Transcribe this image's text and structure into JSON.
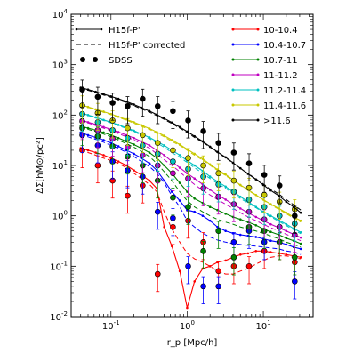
{
  "chart_data": {
    "type": "line",
    "title": "",
    "xlabel": "r_p [Mpc/h]",
    "ylabel": "ΔΣ[hM⊙/pc²]",
    "xscale": "log",
    "yscale": "log",
    "xlim": [
      0.03,
      45
    ],
    "ylim": [
      0.01,
      10000
    ],
    "x_ticks": [
      "10^-1",
      "10^0",
      "10^1"
    ],
    "y_ticks": [
      "10^-2",
      "10^-1",
      "10^0",
      "10^1",
      "10^2",
      "10^3",
      "10^4"
    ],
    "legend_left": {
      "position": "top-left",
      "entries": [
        {
          "label": "H15f-P'",
          "style": "solid-with-points"
        },
        {
          "label": "H15f-P' corrected",
          "style": "dashed"
        },
        {
          "label": "SDSS",
          "style": "markers"
        }
      ]
    },
    "legend_right": {
      "position": "top-right",
      "entries": [
        "10-10.4",
        "10.4-10.7",
        "10.7-11",
        "11-11.2",
        "11.2-11.4",
        "11.4-11.6",
        ">11.6"
      ]
    },
    "x": [
      0.04,
      0.05,
      0.063,
      0.08,
      0.1,
      0.125,
      0.16,
      0.2,
      0.25,
      0.32,
      0.4,
      0.5,
      0.63,
      0.8,
      1.0,
      1.25,
      1.6,
      2.0,
      2.5,
      3.2,
      4.0,
      5.0,
      6.3,
      8.0,
      10.0,
      12.5,
      16.0,
      20.0,
      25.0,
      31.0
    ],
    "sdss_x": [
      0.042,
      0.067,
      0.105,
      0.165,
      0.26,
      0.41,
      0.65,
      1.03,
      1.63,
      2.58,
      4.1,
      6.5,
      10.3,
      16.3,
      25.8
    ],
    "series": [
      {
        "name": "10-10.4",
        "color": "#ff0000",
        "model": [
          22,
          20,
          18,
          16,
          14,
          12,
          10,
          8,
          6.5,
          5,
          3.5,
          0.6,
          0.25,
          0.08,
          0.015,
          0.05,
          0.09,
          0.1,
          0.12,
          0.13,
          0.15,
          0.17,
          0.18,
          0.2,
          0.2,
          0.19,
          0.18,
          0.17,
          0.16,
          0.15
        ],
        "corrected": [
          20,
          18,
          16,
          14,
          12.5,
          11,
          9,
          7,
          5.5,
          4.2,
          3,
          1.2,
          0.55,
          0.3,
          0.18,
          0.14,
          0.12,
          0.1,
          0.08,
          0.07,
          0.07,
          0.08,
          0.09,
          0.11,
          0.13,
          0.15,
          0.16,
          0.16,
          0.15,
          0.14
        ],
        "sdss": [
          20,
          10,
          5,
          2.5,
          4,
          0.07,
          0.6,
          0.8,
          0.3,
          0.08,
          0.1,
          0.1,
          0.2,
          0.3,
          0.12
        ]
      },
      {
        "name": "10.4-10.7",
        "color": "#0000ff",
        "model": [
          45,
          40,
          36,
          32,
          28,
          24,
          20,
          17,
          14,
          11,
          8,
          5,
          3,
          2,
          1.3,
          1.2,
          1.0,
          0.8,
          0.6,
          0.5,
          0.45,
          0.42,
          0.4,
          0.38,
          0.35,
          0.32,
          0.3,
          0.27,
          0.24,
          0.22
        ],
        "corrected": [
          42,
          37,
          33,
          29,
          25,
          22,
          18,
          15,
          12,
          9.5,
          7,
          4.5,
          2.5,
          1.5,
          0.8,
          0.6,
          0.45,
          0.38,
          0.33,
          0.3,
          0.28,
          0.27,
          0.26,
          0.25,
          0.24,
          0.23,
          0.22,
          0.2,
          0.19,
          0.17
        ],
        "sdss": [
          40,
          25,
          12,
          8,
          6,
          1.2,
          0.9,
          0.1,
          0.04,
          0.04,
          0.3,
          0.5,
          0.3,
          0.6,
          0.05
        ]
      },
      {
        "name": "10.7-11",
        "color": "#008000",
        "model": [
          60,
          55,
          50,
          45,
          40,
          35,
          30,
          26,
          22,
          18,
          14,
          10,
          7,
          4.5,
          3,
          2.2,
          1.8,
          1.5,
          1.3,
          1.1,
          0.95,
          0.85,
          0.75,
          0.65,
          0.55,
          0.48,
          0.42,
          0.36,
          0.32,
          0.28
        ],
        "corrected": [
          58,
          52,
          47,
          42,
          37,
          32,
          27,
          23,
          19,
          15,
          11,
          7.5,
          5,
          3,
          2,
          1.5,
          1.2,
          1,
          0.85,
          0.75,
          0.68,
          0.6,
          0.55,
          0.5,
          0.45,
          0.4,
          0.35,
          0.3,
          0.27,
          0.24
        ],
        "sdss": [
          55,
          38,
          24,
          15,
          10,
          5,
          2.3,
          1.5,
          0.2,
          0.5,
          0.15,
          0.6,
          0.5,
          0.3,
          0.15
        ]
      },
      {
        "name": "11-11.2",
        "color": "#c000c0",
        "model": [
          80,
          72,
          65,
          58,
          52,
          46,
          40,
          35,
          30,
          25,
          20,
          16,
          12,
          9,
          7,
          5.5,
          4.2,
          3.3,
          2.6,
          2.1,
          1.7,
          1.4,
          1.15,
          0.95,
          0.8,
          0.68,
          0.58,
          0.5,
          0.43,
          0.37
        ],
        "corrected": [
          78,
          70,
          62,
          55,
          49,
          43,
          37,
          32,
          27,
          22,
          17,
          13,
          10,
          7.5,
          5.5,
          4.2,
          3.2,
          2.6,
          2.1,
          1.7,
          1.4,
          1.15,
          0.95,
          0.8,
          0.68,
          0.58,
          0.5,
          0.43,
          0.37,
          0.32
        ],
        "sdss": [
          75,
          50,
          34,
          23,
          16,
          10,
          7,
          5.5,
          3.5,
          2.4,
          1.7,
          1.2,
          0.85,
          0.6,
          0.42
        ]
      },
      {
        "name": "11.2-11.4",
        "color": "#00c0c0",
        "model": [
          110,
          100,
          90,
          80,
          72,
          64,
          56,
          49,
          42,
          36,
          30,
          25,
          20,
          16,
          12.5,
          10,
          7.8,
          6,
          4.8,
          3.8,
          3,
          2.4,
          1.9,
          1.5,
          1.2,
          1,
          0.82,
          0.68,
          0.56,
          0.47
        ],
        "corrected": [
          108,
          98,
          88,
          78,
          70,
          62,
          54,
          47,
          40,
          34,
          28,
          23,
          18,
          14.5,
          11.5,
          9,
          7,
          5.5,
          4.4,
          3.5,
          2.8,
          2.2,
          1.8,
          1.45,
          1.15,
          0.95,
          0.78,
          0.64,
          0.53,
          0.44
        ],
        "sdss": [
          105,
          72,
          50,
          35,
          25,
          17,
          12,
          8.5,
          6,
          4.2,
          3,
          2.1,
          1.5,
          1,
          0.7
        ]
      },
      {
        "name": "11.4-11.6",
        "color": "#c8c800",
        "model": [
          160,
          145,
          130,
          117,
          105,
          93,
          82,
          72,
          63,
          54,
          46,
          39,
          32,
          26,
          21,
          17,
          13.5,
          10.5,
          8.3,
          6.6,
          5.2,
          4.1,
          3.3,
          2.6,
          2.1,
          1.7,
          1.4,
          1.15,
          0.95,
          0.8
        ],
        "corrected": [
          158,
          142,
          127,
          114,
          102,
          90,
          79,
          69,
          60,
          52,
          44,
          37,
          30,
          25,
          20,
          16,
          12.8,
          10,
          8,
          6.3,
          5,
          4,
          3.2,
          2.55,
          2.05,
          1.65,
          1.35,
          1.1,
          0.9,
          0.75
        ],
        "sdss": [
          155,
          110,
          78,
          55,
          40,
          28,
          20,
          14,
          10,
          7,
          5,
          3.6,
          2.6,
          1.9,
          1.35
        ]
      },
      {
        "name": ">11.6",
        "color": "#000000",
        "model": [
          350,
          320,
          290,
          260,
          235,
          210,
          185,
          162,
          140,
          120,
          102,
          86,
          71,
          58,
          47,
          38,
          30,
          23.5,
          18.5,
          14.5,
          11.3,
          8.8,
          6.8,
          5.3,
          4.1,
          3.2,
          2.5,
          1.9,
          1.5,
          1.15
        ],
        "corrected": [
          340,
          310,
          280,
          250,
          225,
          200,
          176,
          154,
          133,
          114,
          97,
          82,
          68,
          55,
          45,
          36,
          29,
          23,
          18,
          14.2,
          11.2,
          8.8,
          6.9,
          5.4,
          4.3,
          3.4,
          2.7,
          2.1,
          1.65,
          1.3
        ],
        "sdss": [
          320,
          230,
          175,
          150,
          210,
          150,
          120,
          78,
          48,
          28,
          18,
          11,
          6.5,
          4,
          1
        ]
      }
    ]
  }
}
